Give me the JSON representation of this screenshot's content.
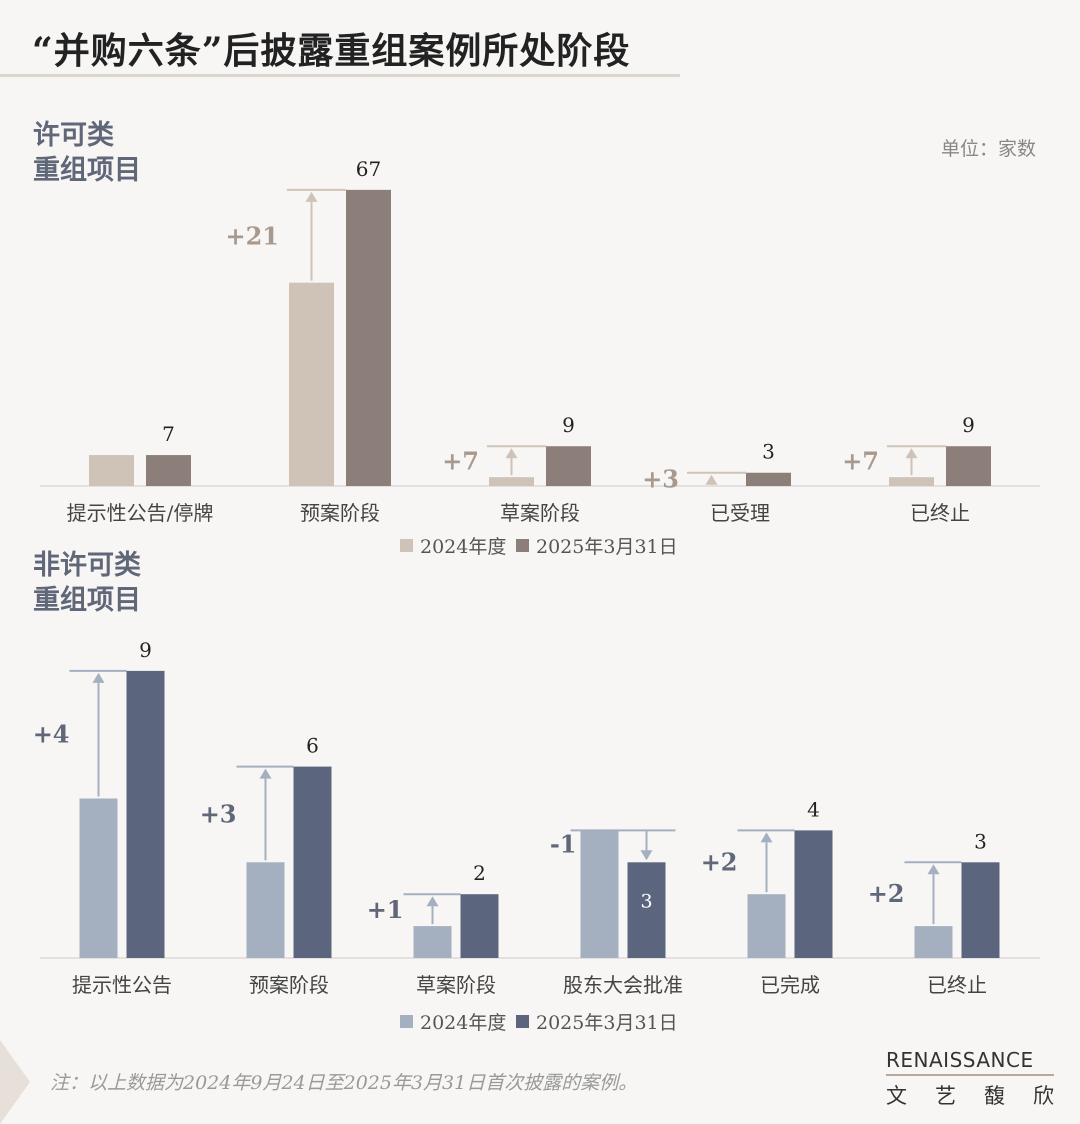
{
  "title": "“并购六条”后披露重组案例所处阶段",
  "unit": "单位：家数",
  "note": "注：以上数据为2024年9月24日至2025年3月31日首次披露的案例。",
  "logo": {
    "en": "RENAISSANCE",
    "cn": [
      "文",
      "艺",
      "馥",
      "欣"
    ]
  },
  "chart_data": [
    {
      "type": "bar",
      "title": "许可类\n重组项目",
      "categories": [
        "提示性公告/停牌",
        "预案阶段",
        "草案阶段",
        "已受理",
        "已终止"
      ],
      "series": [
        {
          "name": "2024年度",
          "values": [
            7,
            46,
            2,
            0,
            2
          ],
          "color": "#cfc3b7"
        },
        {
          "name": "2025年3月31日",
          "values": [
            7,
            67,
            9,
            3,
            9
          ],
          "color": "#8c7f79"
        }
      ],
      "deltas": [
        "",
        "+21",
        "+7",
        "+3",
        "+7"
      ],
      "legend": "bottom"
    },
    {
      "type": "bar",
      "title": "非许可类\n重组项目",
      "categories": [
        "提示性公告",
        "预案阶段",
        "草案阶段",
        "股东大会批准",
        "已完成",
        "已终止"
      ],
      "series": [
        {
          "name": "2024年度",
          "values": [
            5,
            3,
            1,
            4,
            2,
            1
          ],
          "color": "#a4afbf"
        },
        {
          "name": "2025年3月31日",
          "values": [
            9,
            6,
            2,
            3,
            4,
            3
          ],
          "color": "#5b667e"
        }
      ],
      "deltas": [
        "+4",
        "+3",
        "+1",
        "-1",
        "+2",
        "+2"
      ],
      "legend": "bottom"
    }
  ]
}
